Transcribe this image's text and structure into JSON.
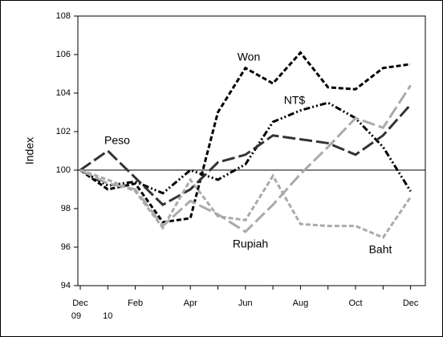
{
  "chart_data": {
    "type": "line",
    "ylabel": "Index",
    "categories": [
      "Dec",
      null,
      "Feb",
      null,
      "Apr",
      null,
      "Jun",
      null,
      "Aug",
      null,
      "Oct",
      null,
      "Dec"
    ],
    "category_years": [
      "09",
      "10",
      null,
      null,
      null,
      null,
      null,
      null,
      null,
      null,
      null,
      null,
      null
    ],
    "ylim": [
      94,
      108
    ],
    "yticks": [
      94,
      96,
      98,
      100,
      102,
      104,
      106,
      108
    ],
    "reference_line": 100,
    "series": [
      {
        "name": "Won",
        "color": "#000000",
        "dash": "short",
        "values": [
          100,
          99.0,
          99.3,
          97.3,
          97.5,
          103.0,
          105.3,
          104.5,
          106.1,
          104.3,
          104.2,
          105.3,
          105.5
        ]
      },
      {
        "name": "NT$",
        "color": "#000000",
        "dash": "dash-dot-dot",
        "values": [
          100,
          99.2,
          99.4,
          98.8,
          100.0,
          99.5,
          100.3,
          102.5,
          103.1,
          103.5,
          102.7,
          101.2,
          98.9
        ]
      },
      {
        "name": "Peso",
        "color": "#333333",
        "dash": "long",
        "values": [
          100,
          101.0,
          99.6,
          98.2,
          99.0,
          100.4,
          100.8,
          101.8,
          101.6,
          101.4,
          100.8,
          101.8,
          103.4
        ]
      },
      {
        "name": "Rupiah",
        "color": "#aaaaaa",
        "dash": "long",
        "values": [
          100,
          99.3,
          99.0,
          97.1,
          98.4,
          97.7,
          96.8,
          98.2,
          99.8,
          101.2,
          102.7,
          102.2,
          104.4
        ]
      },
      {
        "name": "Baht",
        "color": "#aaaaaa",
        "dash": "short",
        "values": [
          100,
          99.5,
          98.9,
          97.0,
          99.5,
          97.6,
          97.4,
          99.7,
          97.2,
          97.1,
          97.1,
          96.5,
          98.6
        ]
      }
    ]
  }
}
